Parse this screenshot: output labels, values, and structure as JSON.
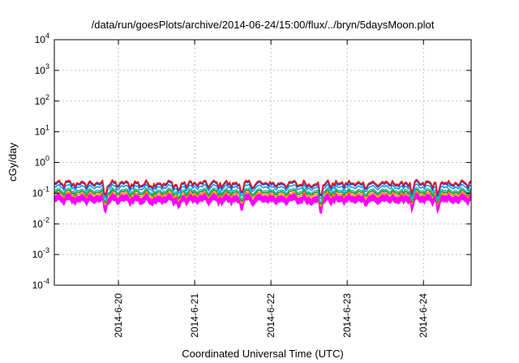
{
  "chart_data": {
    "type": "line",
    "title": "/data/run/goesPlots/archive/2014-06-24/15:00/flux/../bryn/5daysMoon.plot",
    "xlabel": "Coordinated Universal Time (UTC)",
    "ylabel": "cGy/day",
    "yscale": "log",
    "ylim": [
      0.0001,
      10000
    ],
    "xlim": [
      "2014-06-19T03:50",
      "2014-06-24T15:00"
    ],
    "grid": true,
    "y_ticks": [
      {
        "base": "10",
        "exp": "-4"
      },
      {
        "base": "10",
        "exp": "-3"
      },
      {
        "base": "10",
        "exp": "-2"
      },
      {
        "base": "10",
        "exp": "-1"
      },
      {
        "base": "10",
        "exp": "0"
      },
      {
        "base": "10",
        "exp": "1"
      },
      {
        "base": "10",
        "exp": "2"
      },
      {
        "base": "10",
        "exp": "3"
      },
      {
        "base": "10",
        "exp": "4"
      }
    ],
    "x_ticks": [
      {
        "label": "2014-6-20",
        "date": "2014-06-20T00:00"
      },
      {
        "label": "2014-6-21",
        "date": "2014-06-21T00:00"
      },
      {
        "label": "2014-6-22",
        "date": "2014-06-22T00:00"
      },
      {
        "label": "2014-6-23",
        "date": "2014-06-23T00:00"
      },
      {
        "label": "2014-6-24",
        "date": "2014-06-24T00:00"
      }
    ],
    "series": [
      {
        "color": "#e41a1c",
        "base": 0.21,
        "amp": 0.35
      },
      {
        "color": "#3a3aa8",
        "base": 0.19,
        "amp": 0.35
      },
      {
        "color": "#1e90ff",
        "base": 0.155,
        "amp": 0.3
      },
      {
        "color": "#20c0a0",
        "base": 0.12,
        "amp": 0.25
      },
      {
        "color": "#2e8b2e",
        "base": 0.105,
        "amp": 0.25
      },
      {
        "color": "#ff8c00",
        "base": 0.09,
        "amp": 0.25
      },
      {
        "color": "#ff00ff",
        "base": 0.078,
        "amp": 0.3,
        "fill": true
      }
    ]
  }
}
